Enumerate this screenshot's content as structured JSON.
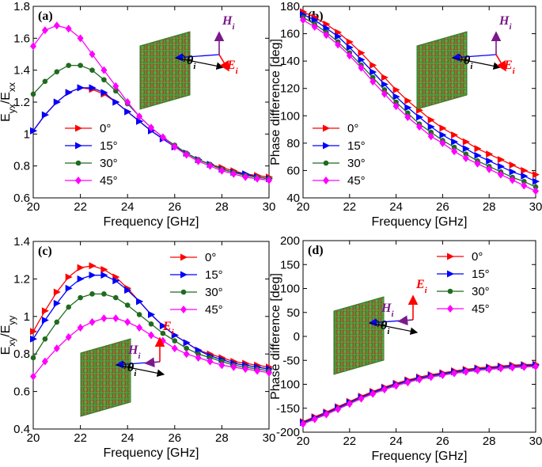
{
  "chart_data": [
    {
      "type": "line",
      "panel_label": "(a)",
      "x_label": "Frequency [GHz]",
      "y_label": [
        "E",
        "yx",
        "/E",
        "xx"
      ],
      "x": [
        20,
        20.5,
        21,
        21.5,
        22,
        22.5,
        23,
        23.5,
        24,
        24.5,
        25,
        25.5,
        26,
        26.5,
        27,
        27.5,
        28,
        28.5,
        29,
        29.5,
        30
      ],
      "xlim": [
        20,
        30
      ],
      "xticks": [
        20,
        22,
        24,
        26,
        28,
        30
      ],
      "ylim": [
        0.6,
        1.8
      ],
      "yticks": [
        0.6,
        0.8,
        1,
        1.2,
        1.4,
        1.6,
        1.8
      ],
      "legend_loc": "lower left",
      "inset_labels": [
        [
          "H",
          "i"
        ],
        [
          "E",
          "i"
        ],
        [
          "θ",
          "i"
        ]
      ],
      "series": [
        {
          "name": "0°",
          "color": "#ff0000",
          "marker": "triangle-right",
          "values": [
            1.02,
            1.12,
            1.2,
            1.26,
            1.29,
            1.28,
            1.25,
            1.2,
            1.14,
            1.08,
            1.02,
            0.97,
            0.92,
            0.88,
            0.84,
            0.81,
            0.79,
            0.77,
            0.75,
            0.74,
            0.73
          ]
        },
        {
          "name": "15°",
          "color": "#0000ff",
          "marker": "triangle-right",
          "values": [
            1.02,
            1.12,
            1.2,
            1.26,
            1.29,
            1.29,
            1.26,
            1.2,
            1.14,
            1.08,
            1.02,
            0.97,
            0.92,
            0.88,
            0.84,
            0.81,
            0.78,
            0.76,
            0.75,
            0.73,
            0.72
          ]
        },
        {
          "name": "30°",
          "color": "#1e6b1e",
          "marker": "circle",
          "values": [
            1.25,
            1.33,
            1.39,
            1.43,
            1.43,
            1.4,
            1.34,
            1.27,
            1.19,
            1.11,
            1.04,
            0.98,
            0.93,
            0.88,
            0.84,
            0.81,
            0.78,
            0.76,
            0.74,
            0.73,
            0.72
          ]
        },
        {
          "name": "45°",
          "color": "#ff00ff",
          "marker": "diamond",
          "values": [
            1.55,
            1.65,
            1.68,
            1.66,
            1.6,
            1.5,
            1.4,
            1.3,
            1.2,
            1.11,
            1.04,
            0.98,
            0.92,
            0.87,
            0.83,
            0.8,
            0.77,
            0.75,
            0.73,
            0.72,
            0.71
          ]
        }
      ]
    },
    {
      "type": "line",
      "panel_label": "(b)",
      "x_label": "Frequency [GHz]",
      "y_label": [
        "Phase difference [deg]"
      ],
      "x": [
        20,
        20.5,
        21,
        21.5,
        22,
        22.5,
        23,
        23.5,
        24,
        24.5,
        25,
        25.5,
        26,
        26.5,
        27,
        27.5,
        28,
        28.5,
        29,
        29.5,
        30
      ],
      "xlim": [
        20,
        30
      ],
      "xticks": [
        20,
        22,
        24,
        26,
        28,
        30
      ],
      "ylim": [
        40,
        180
      ],
      "yticks": [
        40,
        60,
        80,
        100,
        120,
        140,
        160,
        180
      ],
      "legend_loc": "lower left",
      "inset_labels": [
        [
          "H",
          "i"
        ],
        [
          "E",
          "i"
        ],
        [
          "θ",
          "i"
        ]
      ],
      "series": [
        {
          "name": "0°",
          "color": "#ff0000",
          "marker": "triangle-right",
          "values": [
            176,
            172,
            167,
            161,
            154,
            146,
            137,
            128,
            119,
            111,
            104,
            97,
            91,
            86,
            81,
            76,
            72,
            68,
            64,
            60,
            57
          ]
        },
        {
          "name": "15°",
          "color": "#0000ff",
          "marker": "triangle-right",
          "values": [
            174,
            170,
            164,
            158,
            150,
            141,
            132,
            123,
            114,
            106,
            99,
            92,
            86,
            81,
            76,
            71,
            67,
            63,
            59,
            56,
            52
          ]
        },
        {
          "name": "30°",
          "color": "#1e6b1e",
          "marker": "circle",
          "values": [
            172,
            167,
            161,
            154,
            146,
            137,
            128,
            119,
            110,
            102,
            94,
            88,
            82,
            77,
            72,
            67,
            63,
            59,
            55,
            52,
            48
          ]
        },
        {
          "name": "45°",
          "color": "#ff00ff",
          "marker": "diamond",
          "values": [
            170,
            165,
            159,
            152,
            144,
            135,
            125,
            116,
            107,
            99,
            92,
            85,
            80,
            74,
            69,
            65,
            61,
            57,
            53,
            49,
            45
          ]
        }
      ]
    },
    {
      "type": "line",
      "panel_label": "(c)",
      "x_label": "Frequency [GHz]",
      "y_label": [
        "E",
        "xy",
        "/E",
        "yy"
      ],
      "x": [
        20,
        20.5,
        21,
        21.5,
        22,
        22.5,
        23,
        23.5,
        24,
        24.5,
        25,
        25.5,
        26,
        26.5,
        27,
        27.5,
        28,
        28.5,
        29,
        29.5,
        30
      ],
      "xlim": [
        20,
        30
      ],
      "xticks": [
        20,
        22,
        24,
        26,
        28,
        30
      ],
      "ylim": [
        0.4,
        1.4
      ],
      "yticks": [
        0.4,
        0.6,
        0.8,
        1,
        1.2,
        1.4
      ],
      "legend_loc": "upper right",
      "inset_labels": [
        [
          "H",
          "i"
        ],
        [
          "E",
          "i"
        ],
        [
          "θ",
          "i"
        ]
      ],
      "series": [
        {
          "name": "0°",
          "color": "#ff0000",
          "marker": "triangle-right",
          "values": [
            0.92,
            1.03,
            1.13,
            1.21,
            1.26,
            1.27,
            1.25,
            1.21,
            1.15,
            1.08,
            1.01,
            0.95,
            0.9,
            0.86,
            0.82,
            0.8,
            0.78,
            0.76,
            0.75,
            0.74,
            0.73
          ]
        },
        {
          "name": "15°",
          "color": "#0000ff",
          "marker": "triangle-right",
          "values": [
            0.88,
            0.98,
            1.07,
            1.15,
            1.2,
            1.22,
            1.22,
            1.19,
            1.14,
            1.08,
            1.01,
            0.95,
            0.9,
            0.86,
            0.82,
            0.79,
            0.77,
            0.75,
            0.74,
            0.73,
            0.72
          ]
        },
        {
          "name": "30°",
          "color": "#1e6b1e",
          "marker": "circle",
          "values": [
            0.78,
            0.88,
            0.97,
            1.05,
            1.1,
            1.12,
            1.12,
            1.1,
            1.06,
            1.01,
            0.96,
            0.91,
            0.87,
            0.83,
            0.8,
            0.78,
            0.76,
            0.74,
            0.73,
            0.72,
            0.71
          ]
        },
        {
          "name": "45°",
          "color": "#ff00ff",
          "marker": "diamond",
          "values": [
            0.68,
            0.76,
            0.83,
            0.89,
            0.94,
            0.97,
            0.99,
            0.99,
            0.97,
            0.94,
            0.9,
            0.87,
            0.83,
            0.8,
            0.78,
            0.76,
            0.74,
            0.73,
            0.72,
            0.71,
            0.7
          ]
        }
      ]
    },
    {
      "type": "line",
      "panel_label": "(d)",
      "x_label": "Frequency [GHz]",
      "y_label": [
        "Phase difference [deg]"
      ],
      "x": [
        20,
        20.5,
        21,
        21.5,
        22,
        22.5,
        23,
        23.5,
        24,
        24.5,
        25,
        25.5,
        26,
        26.5,
        27,
        27.5,
        28,
        28.5,
        29,
        29.5,
        30
      ],
      "xlim": [
        20,
        30
      ],
      "xticks": [
        20,
        22,
        24,
        26,
        28,
        30
      ],
      "ylim": [
        -200,
        200
      ],
      "yticks": [
        -200,
        -150,
        -100,
        -50,
        0,
        50,
        100,
        150,
        200
      ],
      "legend_loc": "upper right",
      "inset_labels": [
        [
          "H",
          "i"
        ],
        [
          "E",
          "i"
        ],
        [
          "θ",
          "i"
        ]
      ],
      "series": [
        {
          "name": "0°",
          "color": "#ff0000",
          "marker": "triangle-right",
          "values": [
            -178,
            -168,
            -158,
            -147,
            -136,
            -125,
            -115,
            -106,
            -98,
            -91,
            -85,
            -80,
            -76,
            -72,
            -69,
            -66,
            -64,
            -62,
            -60,
            -59,
            -58
          ]
        },
        {
          "name": "15°",
          "color": "#0000ff",
          "marker": "triangle-right",
          "values": [
            -180,
            -170,
            -160,
            -149,
            -138,
            -127,
            -117,
            -108,
            -100,
            -93,
            -87,
            -82,
            -78,
            -74,
            -71,
            -68,
            -66,
            -64,
            -62,
            -61,
            -60
          ]
        },
        {
          "name": "30°",
          "color": "#1e6b1e",
          "marker": "circle",
          "values": [
            -182,
            -172,
            -162,
            -151,
            -140,
            -129,
            -119,
            -110,
            -102,
            -95,
            -89,
            -84,
            -80,
            -76,
            -73,
            -70,
            -68,
            -66,
            -64,
            -63,
            -62
          ]
        },
        {
          "name": "45°",
          "color": "#ff00ff",
          "marker": "diamond",
          "values": [
            -183,
            -173,
            -163,
            -152,
            -141,
            -130,
            -120,
            -111,
            -103,
            -96,
            -90,
            -85,
            -81,
            -77,
            -74,
            -71,
            -69,
            -67,
            -65,
            -64,
            -63
          ]
        }
      ]
    }
  ]
}
